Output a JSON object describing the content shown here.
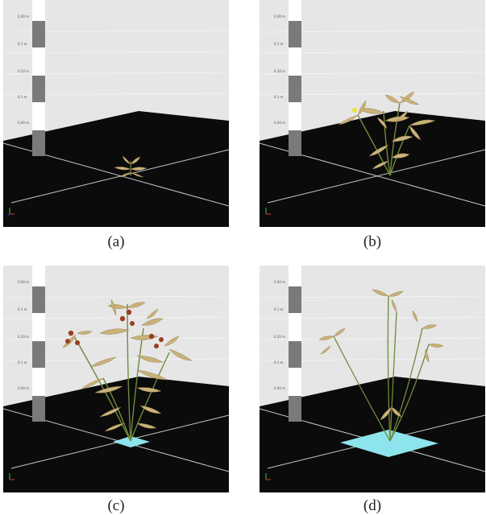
{
  "panels": [
    {
      "id": "a",
      "caption": "(a)",
      "stage": "seedling",
      "pole_labels": [
        "0.00 m",
        "0.1 m",
        "0.20 m",
        "0.1 m",
        "0.00 m"
      ],
      "ground_patch": "none"
    },
    {
      "id": "b",
      "caption": "(b)",
      "stage": "vegetative-flowering",
      "pole_labels": [
        "0.00 m",
        "0.1 m",
        "0.20 m",
        "0.1 m",
        "0.00 m"
      ],
      "ground_patch": "none"
    },
    {
      "id": "c",
      "caption": "(c)",
      "stage": "fruiting",
      "pole_labels": [
        "0.00 m",
        "0.1 m",
        "0.20 m",
        "0.1 m",
        "0.00 m"
      ],
      "ground_patch": "small-cyan"
    },
    {
      "id": "d",
      "caption": "(d)",
      "stage": "senescent",
      "pole_labels": [
        "0.00 m",
        "0.1 m",
        "0.20 m",
        "0.1 m",
        "0.00 m"
      ],
      "ground_patch": "large-cyan"
    }
  ],
  "colors": {
    "sky": "#e6e6e6",
    "ground": "#0b0b0b",
    "grid": "#c8c8c8",
    "stem": "#6f8a3c",
    "leaf": "#c9b27a",
    "leaf_edge": "#8c7440",
    "fruit": "#9a3c22",
    "flower": "#e8e43a",
    "patch": "#8ee4ec",
    "pole_dark": "#7a7a7a",
    "pole_light": "#ffffff"
  }
}
